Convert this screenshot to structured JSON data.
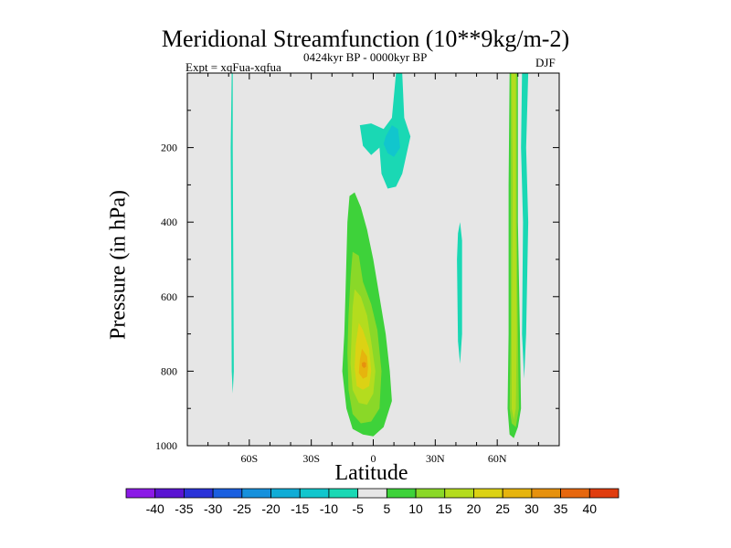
{
  "chart_data": {
    "type": "contour",
    "title": "Meridional Streamfunction (10**9kg/m-2)",
    "left_label": "Expt = xqFua-xqfua",
    "center_label": "0424kyr BP - 0000kyr BP",
    "right_label": "DJF",
    "xlabel": "Latitude",
    "ylabel": "Pressure (in hPa)",
    "x_range": [
      -90,
      90
    ],
    "y_range": [
      0,
      1000
    ],
    "y_inverted": true,
    "x_ticks": [
      {
        "value": -60,
        "label": "60S"
      },
      {
        "value": -30,
        "label": "30S"
      },
      {
        "value": 0,
        "label": "0"
      },
      {
        "value": 30,
        "label": "30N"
      },
      {
        "value": 60,
        "label": "60N"
      }
    ],
    "y_ticks": [
      {
        "value": 200,
        "label": "200"
      },
      {
        "value": 400,
        "label": "400"
      },
      {
        "value": 600,
        "label": "600"
      },
      {
        "value": 800,
        "label": "800"
      },
      {
        "value": 1000,
        "label": "1000"
      }
    ],
    "background_color": "#e6e6e6",
    "contour_levels": [
      -40,
      -35,
      -30,
      -25,
      -20,
      -15,
      -10,
      -5,
      5,
      10,
      15,
      20,
      25,
      30,
      35,
      40
    ],
    "colorbar_colors": [
      "#8b1ae6",
      "#5a14d2",
      "#2a32d8",
      "#1a5fe0",
      "#1690dc",
      "#10acd6",
      "#11c6cd",
      "#1ad8b4",
      "#e6e6e6",
      "#3ed23a",
      "#8ad828",
      "#b4dc1e",
      "#dcd214",
      "#e6b40e",
      "#e6910e",
      "#e6670e",
      "#e03c0e"
    ],
    "regions": [
      {
        "level": -5,
        "color": "#1ad8b4",
        "points": [
          [
            -68.5,
            0
          ],
          [
            -68,
            0
          ],
          [
            -68,
            200
          ],
          [
            -67.5,
            800
          ],
          [
            -68,
            860
          ],
          [
            -68.5,
            800
          ],
          [
            -69,
            200
          ]
        ]
      },
      {
        "level": -5,
        "color": "#1ad8b4",
        "points": [
          [
            -6.5,
            140
          ],
          [
            -1,
            135
          ],
          [
            5,
            150
          ],
          [
            9,
            120
          ],
          [
            11,
            0
          ],
          [
            14,
            0
          ],
          [
            15,
            120
          ],
          [
            18,
            170
          ],
          [
            14,
            270
          ],
          [
            11,
            305
          ],
          [
            7,
            310
          ],
          [
            4,
            270
          ],
          [
            3,
            200
          ],
          [
            -1,
            220
          ],
          [
            -5,
            195
          ]
        ]
      },
      {
        "level": -10,
        "color": "#11c6cd",
        "points": [
          [
            6,
            170
          ],
          [
            9,
            140
          ],
          [
            12,
            150
          ],
          [
            13,
            200
          ],
          [
            10,
            225
          ],
          [
            7,
            215
          ],
          [
            5,
            190
          ]
        ]
      },
      {
        "level": -5,
        "color": "#1ad8b4",
        "points": [
          [
            41,
            430
          ],
          [
            42,
            400
          ],
          [
            43,
            450
          ],
          [
            43,
            700
          ],
          [
            42,
            780
          ],
          [
            41,
            720
          ],
          [
            40.5,
            500
          ]
        ]
      },
      {
        "level": -5,
        "color": "#1ad8b4",
        "points": [
          [
            72,
            0
          ],
          [
            75,
            0
          ],
          [
            74,
            200
          ],
          [
            75,
            400
          ],
          [
            74,
            700
          ],
          [
            73,
            820
          ],
          [
            72,
            700
          ],
          [
            72.5,
            400
          ],
          [
            71.5,
            200
          ]
        ]
      },
      {
        "level": 5,
        "color": "#3ed23a",
        "points": [
          [
            -11.5,
            330
          ],
          [
            -9,
            320
          ],
          [
            -6,
            360
          ],
          [
            -3,
            420
          ],
          [
            0,
            500
          ],
          [
            3,
            600
          ],
          [
            6,
            700
          ],
          [
            8,
            800
          ],
          [
            9,
            880
          ],
          [
            5,
            950
          ],
          [
            0,
            975
          ],
          [
            -5,
            970
          ],
          [
            -10,
            955
          ],
          [
            -13,
            900
          ],
          [
            -15,
            800
          ],
          [
            -14,
            700
          ],
          [
            -13.5,
            600
          ],
          [
            -13,
            500
          ],
          [
            -12.5,
            400
          ]
        ]
      },
      {
        "level": 10,
        "color": "#8ad828",
        "points": [
          [
            -10,
            480
          ],
          [
            -7,
            490
          ],
          [
            -5,
            560
          ],
          [
            -1,
            620
          ],
          [
            2,
            690
          ],
          [
            4,
            800
          ],
          [
            3,
            900
          ],
          [
            -1,
            935
          ],
          [
            -6,
            940
          ],
          [
            -10,
            915
          ],
          [
            -12,
            850
          ],
          [
            -12.5,
            750
          ],
          [
            -12,
            650
          ],
          [
            -11,
            550
          ]
        ]
      },
      {
        "level": 15,
        "color": "#b4dc1e",
        "points": [
          [
            -9,
            580
          ],
          [
            -6,
            600
          ],
          [
            -3,
            650
          ],
          [
            -1,
            720
          ],
          [
            1,
            800
          ],
          [
            0,
            860
          ],
          [
            -3,
            890
          ],
          [
            -7,
            885
          ],
          [
            -10,
            850
          ],
          [
            -11,
            780
          ],
          [
            -10.5,
            700
          ],
          [
            -10,
            630
          ]
        ]
      },
      {
        "level": 20,
        "color": "#dcd214",
        "points": [
          [
            -7,
            670
          ],
          [
            -5,
            690
          ],
          [
            -2,
            740
          ],
          [
            -1,
            800
          ],
          [
            -2,
            840
          ],
          [
            -5,
            850
          ],
          [
            -8,
            840
          ],
          [
            -9,
            790
          ],
          [
            -8.5,
            730
          ]
        ]
      },
      {
        "level": 25,
        "color": "#e6b40e",
        "points": [
          [
            -5.5,
            740
          ],
          [
            -3,
            760
          ],
          [
            -2.5,
            790
          ],
          [
            -3,
            815
          ],
          [
            -5,
            820
          ],
          [
            -7,
            805
          ],
          [
            -6.5,
            770
          ]
        ]
      },
      {
        "level": 30,
        "color": "#e6910e",
        "points": [
          [
            -4.5,
            775
          ],
          [
            -3.5,
            778
          ],
          [
            -3.5,
            788
          ],
          [
            -4.5,
            792
          ],
          [
            -5.5,
            786
          ],
          [
            -5.5,
            778
          ]
        ]
      },
      {
        "level": 5,
        "color": "#3ed23a",
        "points": [
          [
            66,
            0
          ],
          [
            70,
            0
          ],
          [
            70,
            400
          ],
          [
            71,
            700
          ],
          [
            71.5,
            900
          ],
          [
            70,
            950
          ],
          [
            68,
            980
          ],
          [
            66,
            970
          ],
          [
            65,
            900
          ],
          [
            65.5,
            700
          ],
          [
            65.5,
            300
          ]
        ]
      },
      {
        "level": 10,
        "color": "#8ad828",
        "points": [
          [
            66.5,
            0
          ],
          [
            69.5,
            0
          ],
          [
            69.5,
            400
          ],
          [
            70,
            700
          ],
          [
            70.5,
            900
          ],
          [
            69,
            950
          ],
          [
            67,
            940
          ],
          [
            66,
            900
          ],
          [
            66.5,
            700
          ],
          [
            66.5,
            300
          ]
        ]
      },
      {
        "level": 15,
        "color": "#b4dc1e",
        "points": [
          [
            67,
            0
          ],
          [
            69,
            0
          ],
          [
            69,
            400
          ],
          [
            69.5,
            700
          ],
          [
            69,
            900
          ],
          [
            68,
            930
          ],
          [
            67,
            900
          ],
          [
            67,
            700
          ],
          [
            67.5,
            300
          ]
        ]
      }
    ]
  }
}
